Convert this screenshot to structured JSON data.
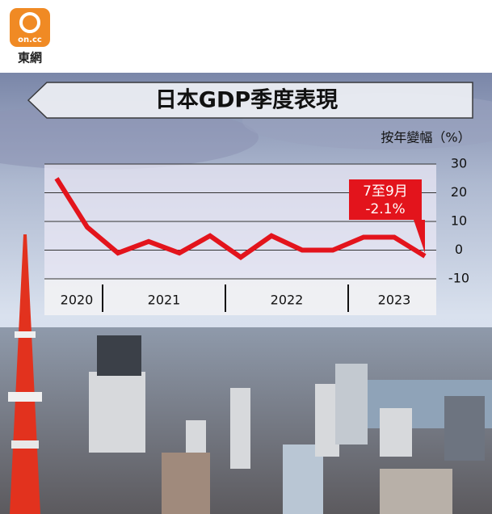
{
  "brand": {
    "logo": "on.cc",
    "name": "東網"
  },
  "chart_data": {
    "type": "line",
    "title": "日本GDP季度表現",
    "y_label": "按年變幅（%）",
    "categories": [
      null,
      null,
      null,
      null,
      null,
      null,
      null,
      null,
      null,
      null,
      null,
      null,
      null
    ],
    "year_labels": [
      "2020",
      "2021",
      "2022",
      "2023"
    ],
    "series": [
      {
        "color": "#e3141c",
        "values": [
          25,
          8,
          -1,
          3,
          -1,
          5,
          -2.5,
          5,
          0,
          0,
          4.5,
          4.5,
          -2.1
        ],
        "value_labels": [
          null,
          null,
          null,
          null,
          null,
          null,
          null,
          null,
          null,
          null,
          null,
          null,
          "-2.1%"
        ]
      }
    ],
    "annotation": "7至9月",
    "ylim": [
      -10,
      30
    ],
    "yticks": [
      -10,
      0,
      10,
      20,
      30
    ],
    "grid": true
  }
}
